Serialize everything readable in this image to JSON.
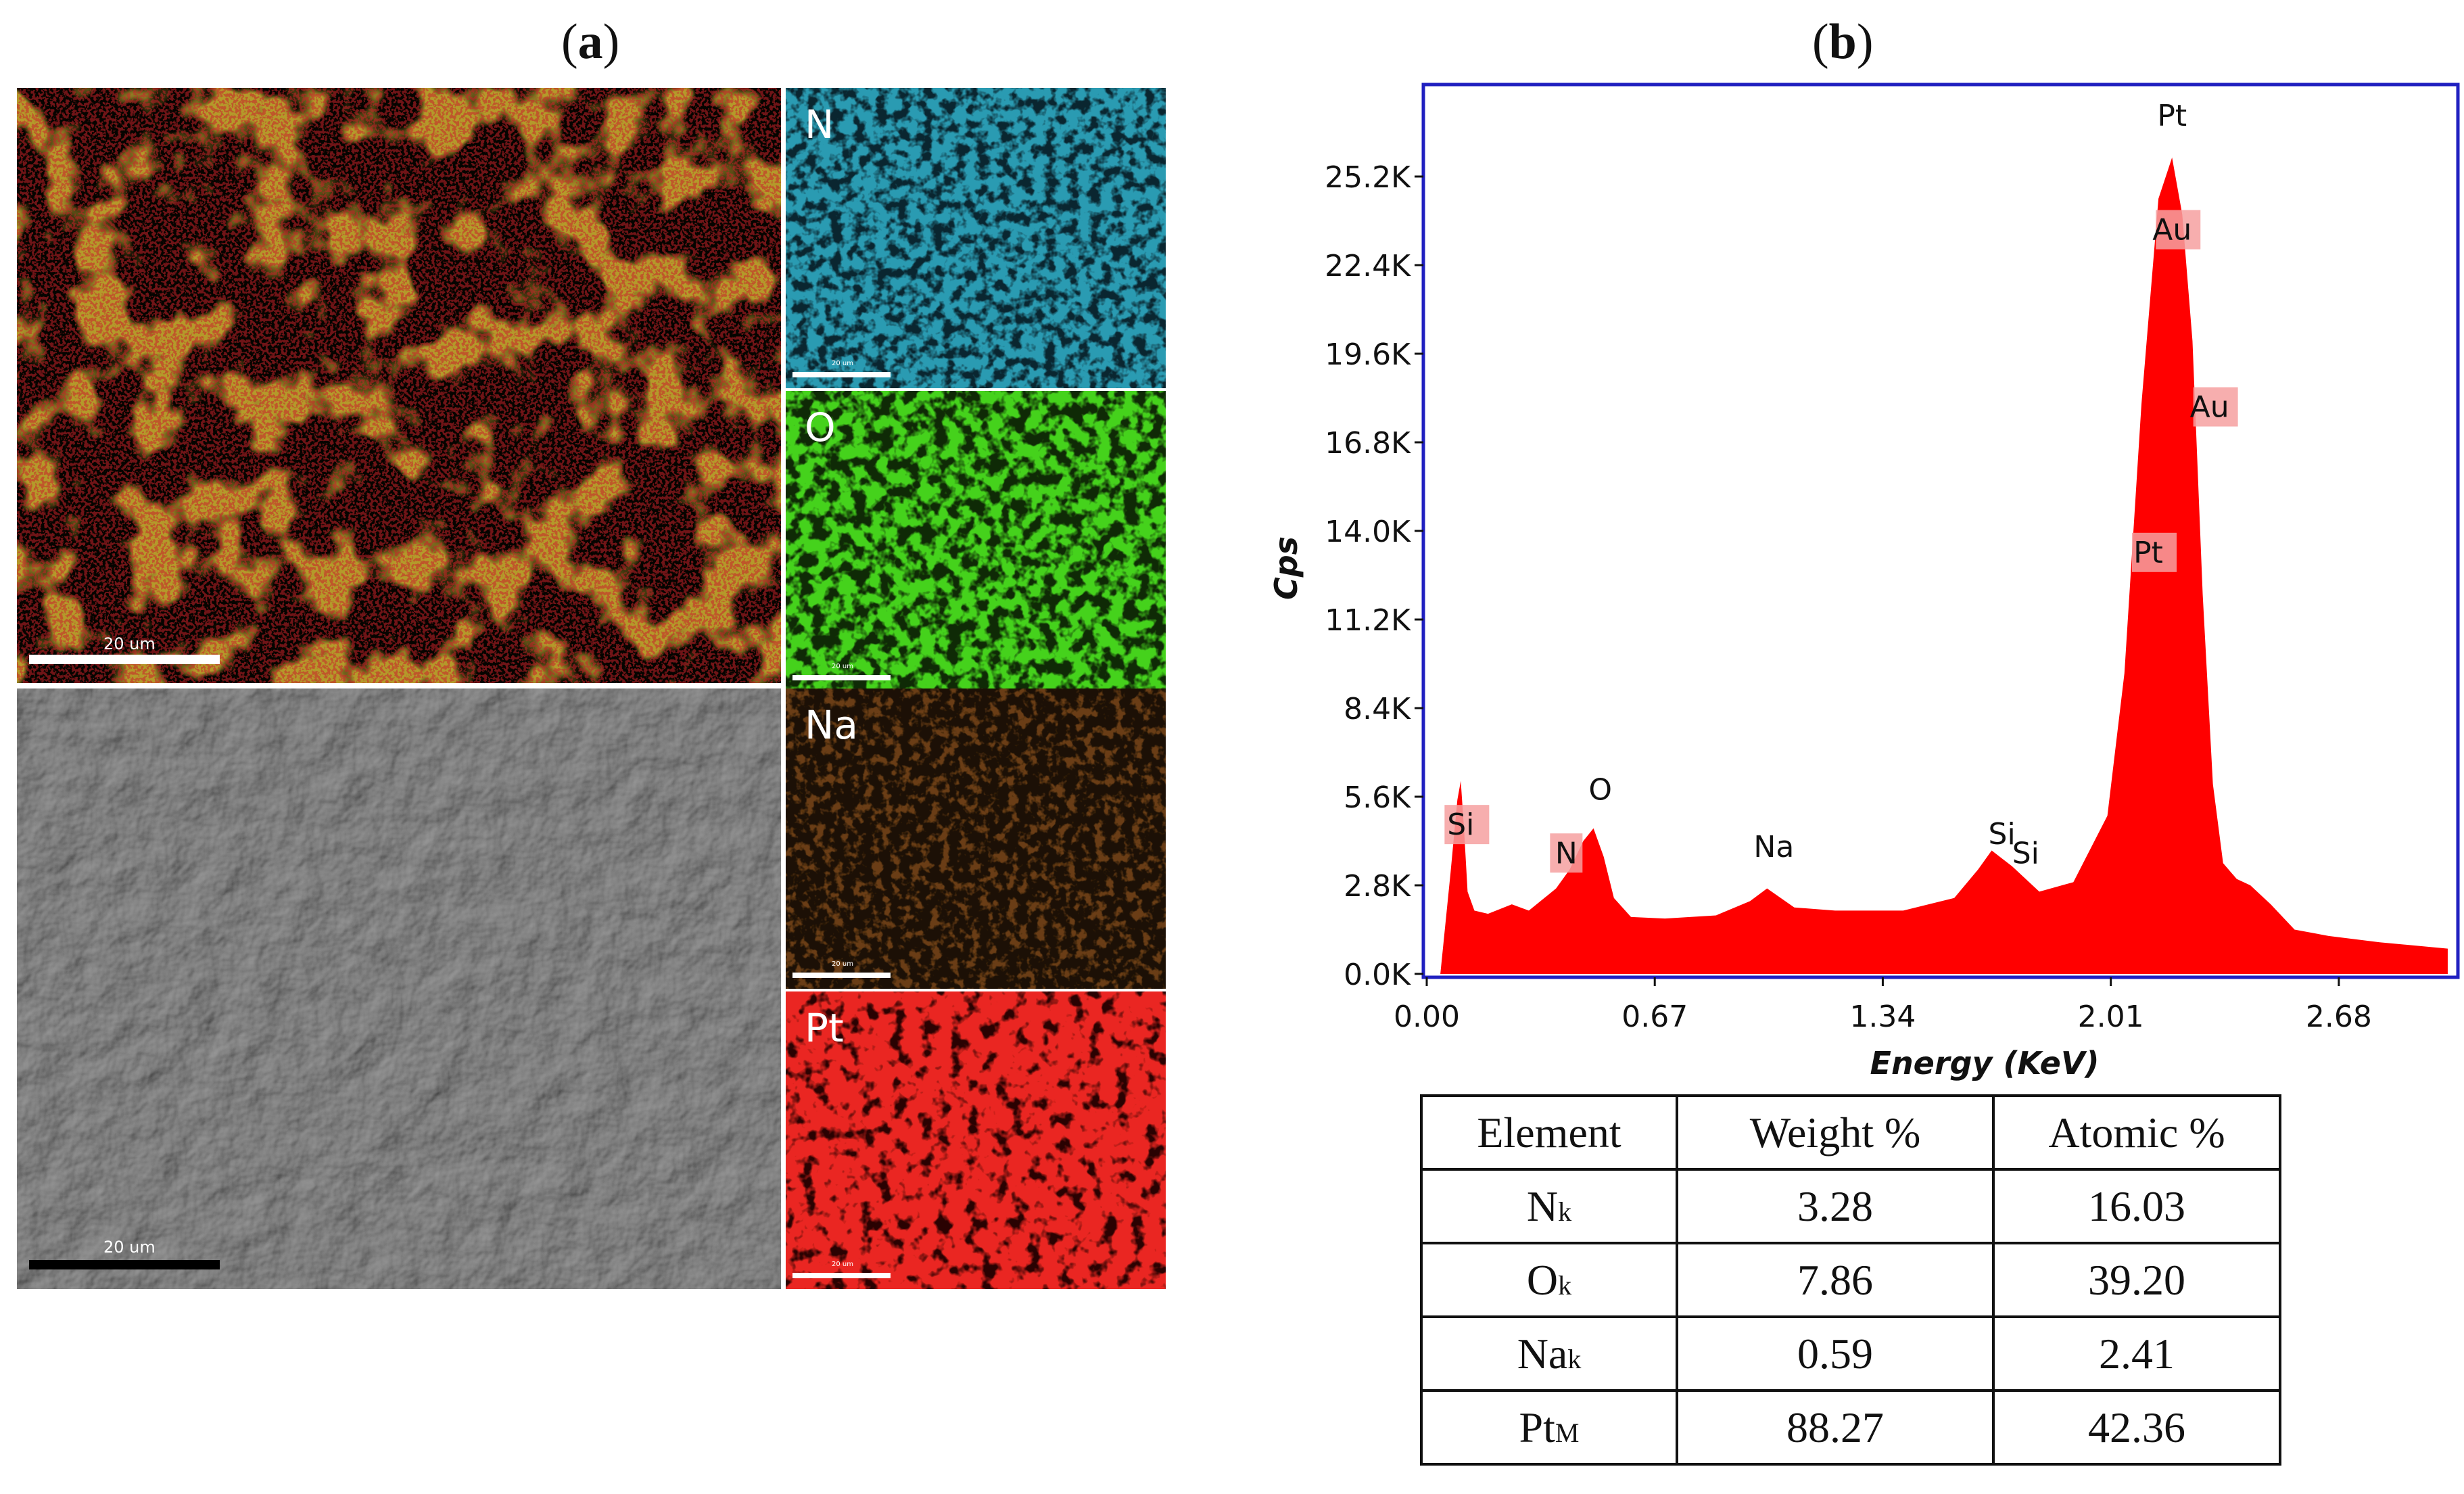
{
  "panel_a": {
    "label_open": "(",
    "label_letter": "a",
    "label_close": ")",
    "composite_scale": "20 um",
    "sem_scale": "20 um",
    "maps": [
      {
        "element": "N",
        "scale": "20 um",
        "color": "#1f8fa8"
      },
      {
        "element": "O",
        "scale": "20 um",
        "color": "#3fcf1c"
      },
      {
        "element": "Na",
        "scale": "20 um",
        "color": "#c8822e"
      },
      {
        "element": "Pt",
        "scale": "20 um",
        "color": "#e8201e"
      }
    ]
  },
  "panel_b": {
    "label_open": "(",
    "label_letter": "b",
    "label_close": ")"
  },
  "chart_data": {
    "type": "area",
    "title": "",
    "xlabel": "Energy (KeV)",
    "ylabel": "Cps",
    "xlim": [
      0.0,
      3.02
    ],
    "ylim": [
      0,
      28000
    ],
    "x_ticks": [
      0.0,
      0.67,
      1.34,
      2.01,
      2.68
    ],
    "x_tick_labels": [
      "0.00",
      "0.67",
      "1.34",
      "2.01",
      "2.68"
    ],
    "y_ticks": [
      0,
      2800,
      5600,
      8400,
      11200,
      14000,
      16800,
      19600,
      22400,
      25200
    ],
    "y_tick_labels": [
      "0.0K",
      "2.8K",
      "5.6K",
      "8.4K",
      "11.2K",
      "14.0K",
      "16.8K",
      "19.6K",
      "22.4K",
      "25.2K"
    ],
    "fill_color": "#ff0000",
    "frame_color": "#2020c0",
    "spectrum": {
      "x": [
        0.04,
        0.07,
        0.09,
        0.1,
        0.11,
        0.12,
        0.14,
        0.18,
        0.25,
        0.3,
        0.38,
        0.42,
        0.46,
        0.49,
        0.52,
        0.55,
        0.6,
        0.7,
        0.85,
        0.95,
        1.0,
        1.08,
        1.2,
        1.4,
        1.55,
        1.62,
        1.66,
        1.72,
        1.8,
        1.9,
        2.0,
        2.05,
        2.1,
        2.15,
        2.19,
        2.22,
        2.25,
        2.28,
        2.31,
        2.34,
        2.38,
        2.42,
        2.48,
        2.55,
        2.65,
        2.8,
        3.0
      ],
      "y": [
        0,
        3200,
        5500,
        6100,
        4500,
        2600,
        2000,
        1900,
        2200,
        2000,
        2700,
        3300,
        4200,
        4600,
        3700,
        2400,
        1800,
        1750,
        1850,
        2300,
        2700,
        2100,
        2000,
        2000,
        2400,
        3300,
        3900,
        3400,
        2600,
        2900,
        5000,
        9500,
        18000,
        24500,
        25800,
        24000,
        20000,
        12000,
        6000,
        3500,
        3000,
        2800,
        2200,
        1400,
        1200,
        1000,
        800
      ]
    },
    "peak_labels": [
      {
        "text": "Pt",
        "x": 2.19,
        "y": 26800,
        "box": false
      },
      {
        "text": "Au",
        "x": 2.19,
        "y": 23200,
        "box": true
      },
      {
        "text": "Au",
        "x": 2.3,
        "y": 17600,
        "box": true
      },
      {
        "text": "Pt",
        "x": 2.12,
        "y": 13000,
        "box": true
      },
      {
        "text": "Si",
        "x": 0.1,
        "y": 4400,
        "box": true
      },
      {
        "text": "N",
        "x": 0.41,
        "y": 3500,
        "box": true
      },
      {
        "text": "O",
        "x": 0.51,
        "y": 5500,
        "box": false
      },
      {
        "text": "Na",
        "x": 1.02,
        "y": 3700,
        "box": false
      },
      {
        "text": "Si",
        "x": 1.69,
        "y": 4100,
        "box": false
      },
      {
        "text": "Si",
        "x": 1.76,
        "y": 3500,
        "box": false
      }
    ]
  },
  "table": {
    "headers": [
      "Element",
      "Weight %",
      "Atomic %"
    ],
    "rows": [
      {
        "element": "N",
        "line": "k",
        "weight": "3.28",
        "atomic": "16.03"
      },
      {
        "element": "O",
        "line": "k",
        "weight": "7.86",
        "atomic": "39.20"
      },
      {
        "element": "Na",
        "line": "k",
        "weight": "0.59",
        "atomic": "2.41"
      },
      {
        "element": "Pt",
        "line": "M",
        "weight": "88.27",
        "atomic": "42.36"
      }
    ]
  }
}
